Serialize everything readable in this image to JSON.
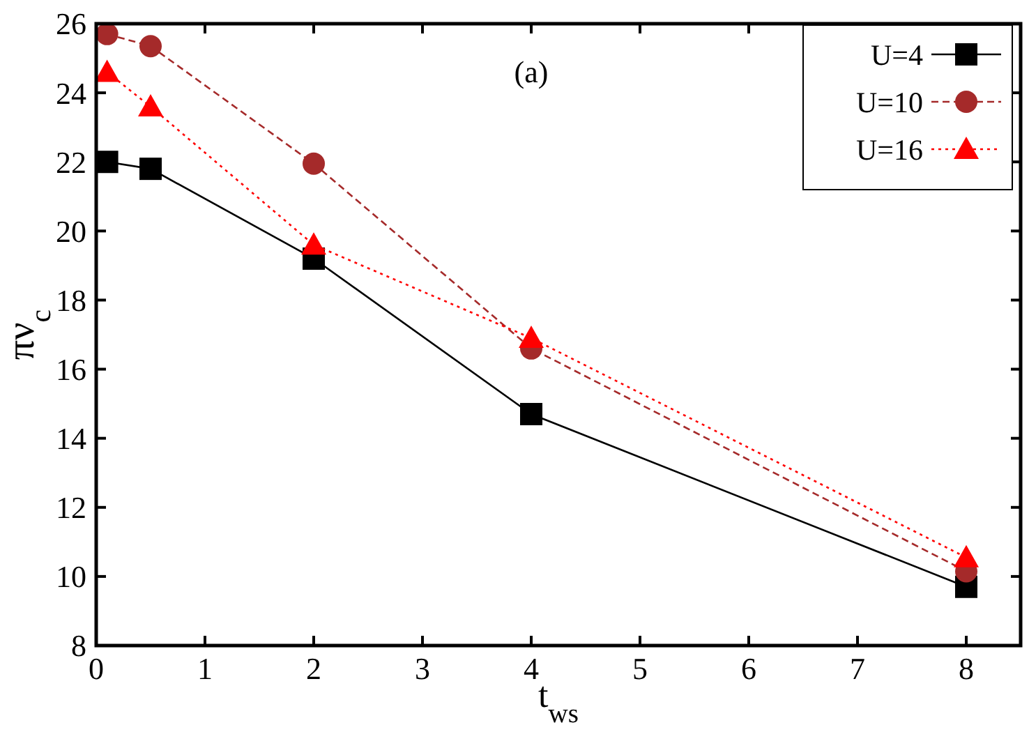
{
  "chart_data": {
    "type": "line",
    "xlabel": "t$_{ws}$",
    "ylabel": "πν$_{c}$",
    "annotations": [
      "(a)"
    ],
    "xlim": [
      0,
      8.5
    ],
    "xticks": [
      0,
      1,
      2,
      3,
      4,
      5,
      6,
      7,
      8
    ],
    "ylim": [
      8,
      26
    ],
    "yticks": [
      8,
      10,
      12,
      14,
      16,
      18,
      20,
      22,
      24,
      26
    ],
    "grid": false,
    "legend": "top right",
    "series": [
      {
        "name": "U=4",
        "color": "#000000",
        "marker": "square",
        "line_style": "solid",
        "x": [
          0.1,
          0.5,
          2,
          4,
          8
        ],
        "values": [
          22.0,
          21.8,
          19.2,
          14.7,
          9.7
        ]
      },
      {
        "name": "U=10",
        "color": "#a52a2a",
        "marker": "circle",
        "line_style": "dashed",
        "x": [
          0.1,
          0.5,
          2,
          4,
          8
        ],
        "values": [
          25.7,
          25.35,
          21.95,
          16.6,
          10.15
        ]
      },
      {
        "name": "U=16",
        "color": "#ff0000",
        "marker": "triangle",
        "line_style": "dotted",
        "x": [
          0.1,
          0.5,
          2,
          4,
          8
        ],
        "values": [
          24.6,
          23.6,
          19.6,
          16.9,
          10.55
        ]
      }
    ]
  }
}
